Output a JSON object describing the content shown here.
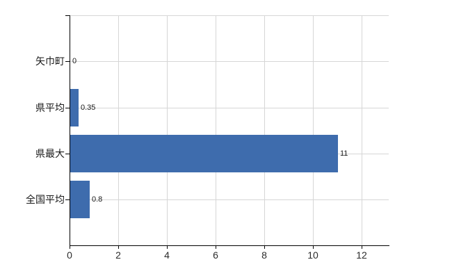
{
  "chart_data": {
    "type": "bar",
    "orientation": "horizontal",
    "title": "",
    "categories": [
      "矢巾町",
      "県平均",
      "県最大",
      "全国平均"
    ],
    "values": [
      0,
      0.35,
      11,
      0.8
    ],
    "value_labels": [
      "0",
      "0.35",
      "11",
      "0.8"
    ],
    "x_ticks": [
      "0",
      "2",
      "4",
      "6",
      "8",
      "10",
      "12"
    ],
    "x_tick_values": [
      0,
      2,
      4,
      6,
      8,
      10,
      12
    ],
    "xlim": [
      0,
      13.1
    ],
    "grid": true,
    "legend": false,
    "colors": {
      "bar": "#3E6CAD",
      "grid": "#D6D6D6",
      "axis": "#000000",
      "text": "#1A1A1A",
      "tick_text": "#2B2B2B",
      "background": "#FFFFFF"
    }
  }
}
